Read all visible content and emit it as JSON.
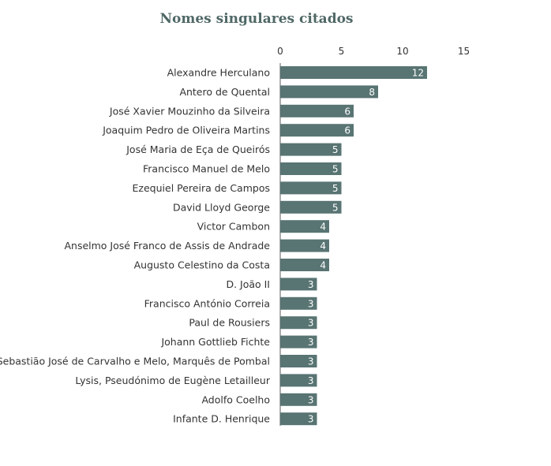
{
  "chart_data": {
    "type": "bar",
    "orientation": "horizontal",
    "title": "Nomes singulares citados",
    "xlim": [
      0,
      15
    ],
    "xticks": [
      0,
      5,
      10,
      15
    ],
    "xaxis_position": "top",
    "grid": false,
    "data_labels": true,
    "bar_color": "#587473",
    "title_color": "#4f6866",
    "categories": [
      "Alexandre Herculano",
      "Antero de Quental",
      "José Xavier Mouzinho da Silveira",
      "Joaquim Pedro de Oliveira Martins",
      "José Maria de Eça de Queirós",
      "Francisco Manuel de Melo",
      "Ezequiel Pereira de Campos",
      "David Lloyd George",
      "Victor Cambon",
      "Anselmo José Franco de Assis de Andrade",
      "Augusto Celestino da Costa",
      "D. João II",
      "Francisco António Correia",
      "Paul de Rousiers",
      "Johann Gottlieb Fichte",
      "Sebastião José de Carvalho e Melo, Marquês de Pombal",
      "Lysis, Pseudónimo de Eugène Letailleur",
      "Adolfo Coelho",
      "Infante D. Henrique"
    ],
    "values": [
      12,
      8,
      6,
      6,
      5,
      5,
      5,
      5,
      4,
      4,
      4,
      3,
      3,
      3,
      3,
      3,
      3,
      3,
      3
    ]
  }
}
